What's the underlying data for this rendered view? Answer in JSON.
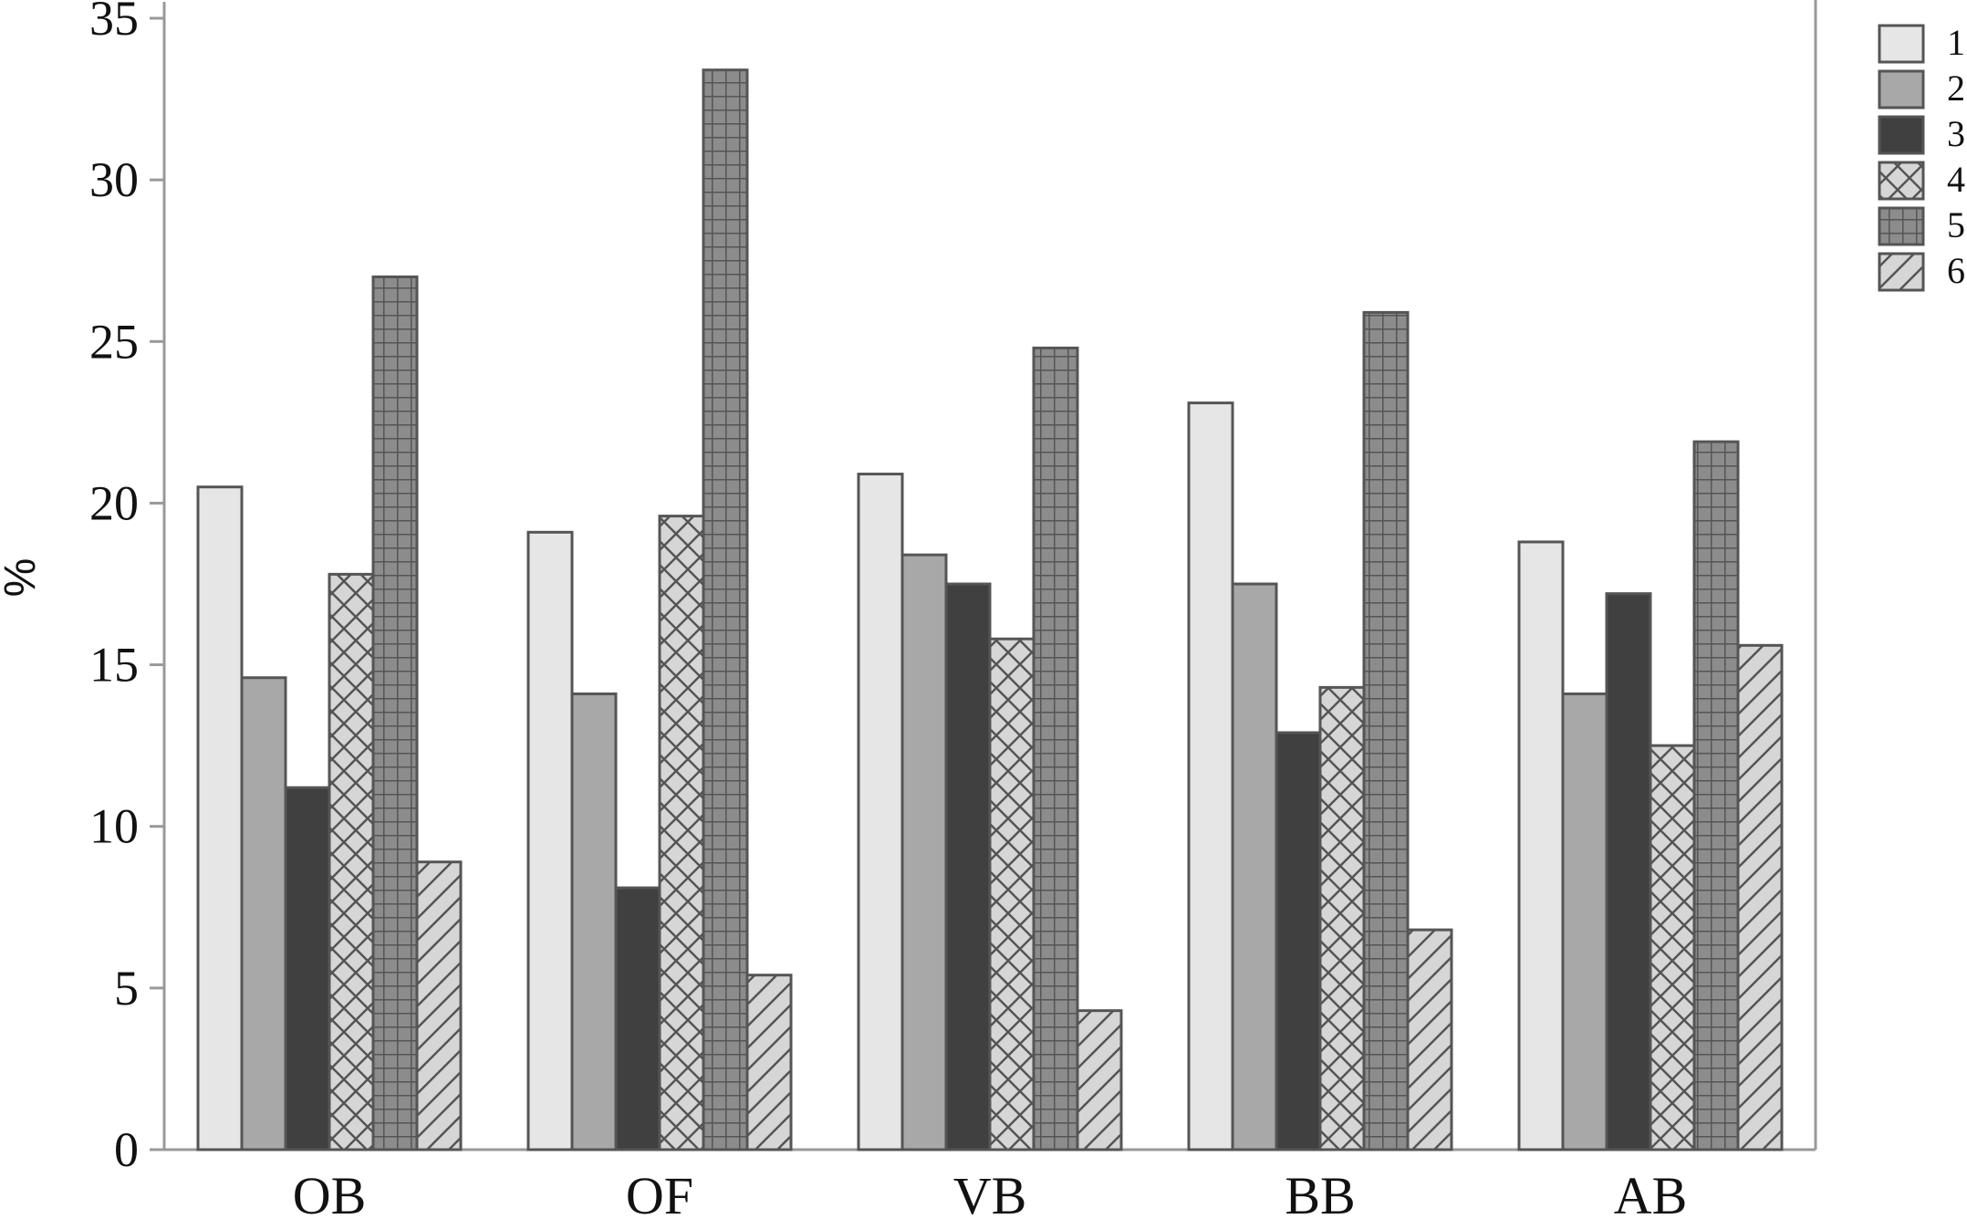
{
  "chart_data": {
    "type": "bar",
    "title": "",
    "xlabel": "",
    "ylabel": "%",
    "ylim": [
      0,
      35
    ],
    "yticks": [
      "0",
      "5",
      "10",
      "15",
      "20",
      "25",
      "30",
      "35"
    ],
    "grid": false,
    "legend_position": "top-right",
    "categories": [
      "OB",
      "OF",
      "VB",
      "BB",
      "AB"
    ],
    "series": [
      {
        "name": "1",
        "values": [
          20.5,
          19.1,
          20.9,
          23.1,
          18.8
        ],
        "fill": "#e6e6e6",
        "pattern": "solid"
      },
      {
        "name": "2",
        "values": [
          14.6,
          14.1,
          18.4,
          17.5,
          14.1
        ],
        "fill": "#a8a8a8",
        "pattern": "solid"
      },
      {
        "name": "3",
        "values": [
          11.2,
          8.1,
          17.5,
          12.9,
          17.2
        ],
        "fill": "#404040",
        "pattern": "solid"
      },
      {
        "name": "4",
        "values": [
          17.8,
          19.6,
          15.8,
          14.3,
          12.5
        ],
        "fill": "#d6d6d6",
        "pattern": "crosshatch"
      },
      {
        "name": "5",
        "values": [
          27.0,
          33.4,
          24.8,
          25.9,
          21.9
        ],
        "fill": "#8c8c8c",
        "pattern": "grid"
      },
      {
        "name": "6",
        "values": [
          8.9,
          5.4,
          4.3,
          6.8,
          15.6
        ],
        "fill": "#d6d6d6",
        "pattern": "diagonal"
      }
    ],
    "colors": {
      "axis": "#999999",
      "bar_outline": "#555555",
      "pattern_line": "#555555"
    }
  }
}
